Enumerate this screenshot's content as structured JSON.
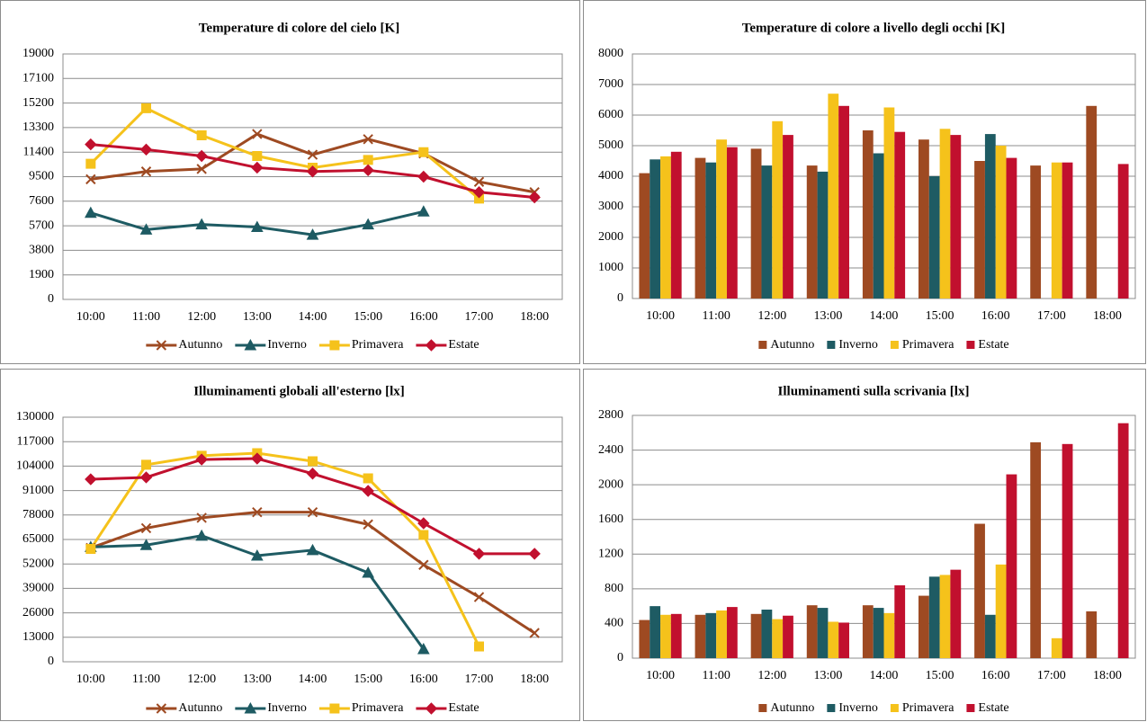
{
  "chart_data": [
    {
      "type": "line",
      "title": "Temperature di colore del cielo [K]",
      "categories": [
        "10:00",
        "11:00",
        "12:00",
        "13:00",
        "14:00",
        "15:00",
        "16:00",
        "17:00",
        "18:00"
      ],
      "series": [
        {
          "name": "Autunno",
          "color": "#9e4a22",
          "marker": "x",
          "values": [
            9300,
            9900,
            10100,
            12800,
            11200,
            12400,
            11300,
            9100,
            8300
          ]
        },
        {
          "name": "Inverno",
          "color": "#1e5b63",
          "marker": "triangle",
          "values": [
            6700,
            5400,
            5800,
            5600,
            5000,
            5800,
            6800,
            null,
            null
          ]
        },
        {
          "name": "Primavera",
          "color": "#f5c21b",
          "marker": "square",
          "values": [
            10500,
            14800,
            12700,
            11100,
            10200,
            10800,
            11400,
            7800,
            null
          ]
        },
        {
          "name": "Estate",
          "color": "#c1102e",
          "marker": "diamond",
          "values": [
            12000,
            11600,
            11100,
            10200,
            9900,
            10000,
            9500,
            8300,
            7900
          ]
        }
      ],
      "ylim": [
        0,
        19000
      ],
      "yticks": [
        0,
        1900,
        3800,
        5700,
        7600,
        9500,
        11400,
        13300,
        15200,
        17100,
        19000
      ],
      "grid": true,
      "legend": "bottom"
    },
    {
      "type": "bar",
      "title": "Temperature di colore a livello degli occhi [K]",
      "categories": [
        "10:00",
        "11:00",
        "12:00",
        "13:00",
        "14:00",
        "15:00",
        "16:00",
        "17:00",
        "18:00"
      ],
      "series": [
        {
          "name": "Autunno",
          "color": "#9e4a22",
          "values": [
            4100,
            4600,
            4900,
            4350,
            5500,
            5200,
            4500,
            4350,
            6300
          ]
        },
        {
          "name": "Inverno",
          "color": "#1e5b63",
          "values": [
            4550,
            4450,
            4350,
            4150,
            4750,
            4000,
            5380,
            null,
            null
          ]
        },
        {
          "name": "Primavera",
          "color": "#f5c21b",
          "values": [
            4650,
            5200,
            5800,
            6700,
            6250,
            5550,
            5000,
            4450,
            null
          ]
        },
        {
          "name": "Estate",
          "color": "#c1102e",
          "values": [
            4800,
            4950,
            5350,
            6300,
            5450,
            5350,
            4600,
            4450,
            4400
          ]
        }
      ],
      "ylim": [
        0,
        8000
      ],
      "yticks": [
        0,
        1000,
        2000,
        3000,
        4000,
        5000,
        6000,
        7000,
        8000
      ],
      "grid": true,
      "legend": "bottom"
    },
    {
      "type": "line",
      "title": "Illuminamenti globali all'esterno [lx]",
      "categories": [
        "10:00",
        "11:00",
        "12:00",
        "13:00",
        "14:00",
        "15:00",
        "16:00",
        "17:00",
        "18:00"
      ],
      "series": [
        {
          "name": "Autunno",
          "color": "#9e4a22",
          "marker": "x",
          "values": [
            60500,
            71000,
            76500,
            79500,
            79500,
            73000,
            51500,
            34400,
            15300
          ]
        },
        {
          "name": "Inverno",
          "color": "#1e5b63",
          "marker": "triangle",
          "values": [
            61000,
            62000,
            67000,
            56400,
            59300,
            47300,
            6700,
            null,
            null
          ]
        },
        {
          "name": "Primavera",
          "color": "#f5c21b",
          "marker": "square",
          "values": [
            60000,
            104700,
            109500,
            110900,
            106600,
            97500,
            67400,
            8100,
            null
          ]
        },
        {
          "name": "Estate",
          "color": "#c1102e",
          "marker": "diamond",
          "values": [
            97000,
            98000,
            107500,
            108000,
            100000,
            90800,
            73600,
            57400,
            57400
          ]
        }
      ],
      "ylim": [
        0,
        130000
      ],
      "yticks": [
        0,
        13000,
        26000,
        39000,
        52000,
        65000,
        78000,
        91000,
        104000,
        117000,
        130000
      ],
      "grid": true,
      "legend": "bottom"
    },
    {
      "type": "bar",
      "title": "Illuminamenti sulla scrivania [lx]",
      "categories": [
        "10:00",
        "11:00",
        "12:00",
        "13:00",
        "14:00",
        "15:00",
        "16:00",
        "17:00",
        "18:00"
      ],
      "series": [
        {
          "name": "Autunno",
          "color": "#9e4a22",
          "values": [
            440,
            500,
            510,
            610,
            610,
            720,
            1550,
            2490,
            540
          ]
        },
        {
          "name": "Inverno",
          "color": "#1e5b63",
          "values": [
            600,
            520,
            560,
            580,
            580,
            940,
            500,
            null,
            null
          ]
        },
        {
          "name": "Primavera",
          "color": "#f5c21b",
          "values": [
            500,
            550,
            450,
            420,
            520,
            960,
            1080,
            230,
            null
          ]
        },
        {
          "name": "Estate",
          "color": "#c1102e",
          "values": [
            510,
            590,
            490,
            410,
            840,
            1020,
            2120,
            2470,
            2710
          ]
        }
      ],
      "ylim": [
        0,
        2800
      ],
      "yticks": [
        0,
        400,
        800,
        1200,
        1600,
        2000,
        2400,
        2800
      ],
      "grid": true,
      "legend": "bottom"
    }
  ]
}
